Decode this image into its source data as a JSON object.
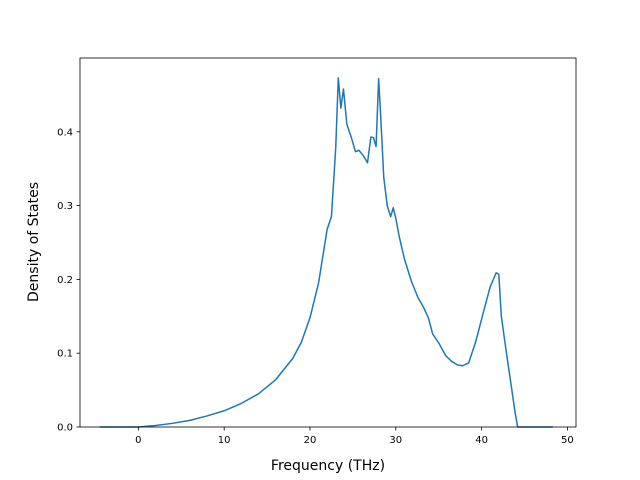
{
  "chart_data": {
    "type": "line",
    "title": "",
    "xlabel": "Frequency (THz)",
    "ylabel": "Density of States",
    "xlim": [
      -6.8,
      51
    ],
    "ylim": [
      0,
      0.5
    ],
    "xticks": [
      0,
      10,
      20,
      30,
      40,
      50
    ],
    "yticks": [
      0.0,
      0.1,
      0.2,
      0.3,
      0.4
    ],
    "ytick_labels": [
      "0.0",
      "0.1",
      "0.2",
      "0.3",
      "0.4"
    ],
    "grid": false,
    "colors": {
      "series": "#1f77b4",
      "axes": "#000000",
      "background": "#ffffff"
    },
    "series": [
      {
        "x": [
          -4.5,
          -2,
          0,
          2,
          4,
          6,
          8,
          10,
          12,
          14,
          16,
          18,
          19,
          20,
          21,
          22,
          22.5,
          23,
          23.3,
          23.6,
          23.9,
          24.3,
          24.8,
          25.3,
          25.7,
          26.2,
          26.7,
          27.1,
          27.4,
          27.7,
          28.0,
          28.2,
          28.6,
          29.0,
          29.4,
          29.7,
          30.0,
          30.4,
          31.0,
          31.8,
          32.6,
          33.2,
          33.8,
          34.3,
          35.0,
          35.8,
          36.5,
          37.2,
          37.8,
          38.5,
          39.3,
          40.2,
          41.0,
          41.7,
          42.0,
          42.3,
          42.8,
          43.4,
          43.9,
          44.2,
          44.6,
          46.0,
          48.3
        ],
        "y": [
          0.0,
          0.0,
          0.0,
          0.002,
          0.005,
          0.009,
          0.015,
          0.022,
          0.032,
          0.045,
          0.064,
          0.093,
          0.115,
          0.148,
          0.195,
          0.268,
          0.285,
          0.378,
          0.473,
          0.432,
          0.458,
          0.41,
          0.393,
          0.373,
          0.375,
          0.368,
          0.358,
          0.393,
          0.392,
          0.38,
          0.472,
          0.43,
          0.338,
          0.3,
          0.285,
          0.297,
          0.283,
          0.258,
          0.228,
          0.198,
          0.175,
          0.163,
          0.148,
          0.126,
          0.114,
          0.097,
          0.089,
          0.084,
          0.083,
          0.087,
          0.115,
          0.155,
          0.19,
          0.209,
          0.207,
          0.15,
          0.108,
          0.06,
          0.02,
          0.0,
          0.0,
          0.0,
          0.0
        ]
      }
    ]
  }
}
